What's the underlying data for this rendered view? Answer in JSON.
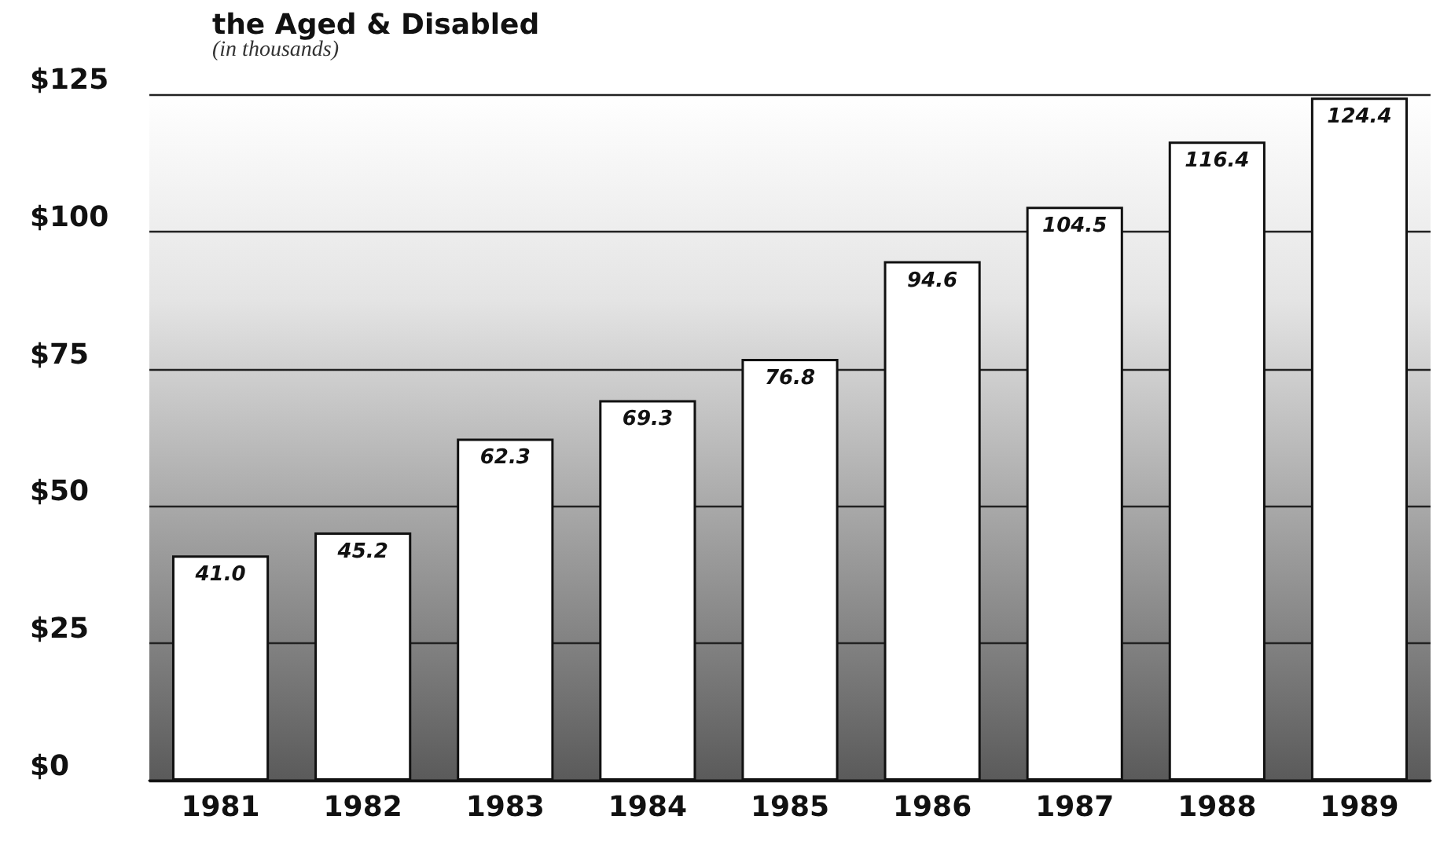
{
  "chart_data": {
    "type": "bar",
    "title": "the Aged & Disabled",
    "subtitle": "(in thousands)",
    "categories": [
      "1981",
      "1982",
      "1983",
      "1984",
      "1985",
      "1986",
      "1987",
      "1988",
      "1989"
    ],
    "values": [
      41.0,
      45.2,
      62.3,
      69.3,
      76.8,
      94.6,
      104.5,
      116.4,
      124.4
    ],
    "value_labels": [
      "41.0",
      "45.2",
      "62.3",
      "69.3",
      "76.8",
      "94.6",
      "104.5",
      "116.4",
      "124.4"
    ],
    "color": "#ffffff",
    "ylim": [
      0,
      125
    ],
    "yticks": [
      {
        "value": 0,
        "label": "$0"
      },
      {
        "value": 25,
        "label": "$25"
      },
      {
        "value": 50,
        "label": "$50"
      },
      {
        "value": 75,
        "label": "$75"
      },
      {
        "value": 100,
        "label": "$100"
      },
      {
        "value": 125,
        "label": "$125"
      }
    ],
    "grid": "y"
  }
}
